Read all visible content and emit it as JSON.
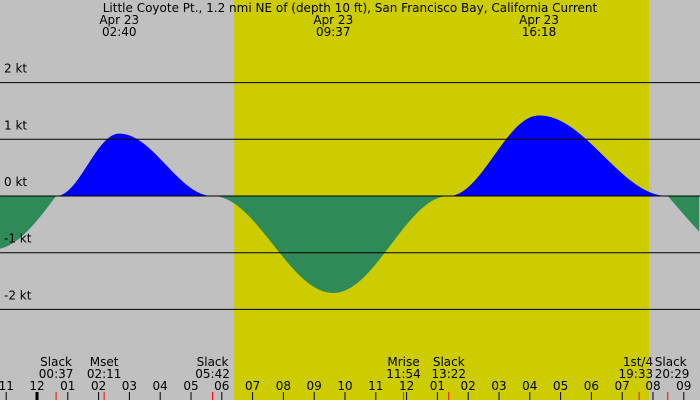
{
  "chart_data": {
    "type": "area",
    "title": "Little Coyote Pt., 1.2 nmi NE of (depth 10 ft), San Francisco Bay, California Current",
    "unit": "kt",
    "y_ticks": [
      2,
      1,
      0,
      -1,
      -2
    ],
    "y_tick_labels": [
      "2 kt",
      "1 kt",
      "0 kt",
      "-1 kt",
      "-2 kt"
    ],
    "ylim": [
      -3.4,
      3.4
    ],
    "xlim_hours": [
      -1.2,
      21.5
    ],
    "x_tick_labels": [
      "11",
      "12",
      "01",
      "02",
      "03",
      "04",
      "05",
      "06",
      "07",
      "08",
      "09",
      "10",
      "11",
      "12",
      "01",
      "02",
      "03",
      "04",
      "05",
      "06",
      "07",
      "08",
      "09"
    ],
    "x_tick_hours": [
      -1,
      0,
      1,
      2,
      3,
      4,
      5,
      6,
      7,
      8,
      9,
      10,
      11,
      12,
      13,
      14,
      15,
      16,
      17,
      18,
      19,
      20,
      21
    ],
    "daylight_hours": [
      6.4,
      19.87
    ],
    "colors": {
      "night": "#c0c0c0",
      "day": "#cccc00",
      "flood": "#0000ff",
      "ebb": "#2e8b57",
      "event_tick": "#ff0000"
    },
    "current_points": [
      {
        "hour": -1.2,
        "kt": -0.93
      },
      {
        "hour": 0.62,
        "kt": 0
      },
      {
        "hour": 2.67,
        "kt": 1.1
      },
      {
        "hour": 5.7,
        "kt": 0
      },
      {
        "hour": 9.62,
        "kt": -1.71
      },
      {
        "hour": 13.37,
        "kt": 0
      },
      {
        "hour": 16.3,
        "kt": 1.42
      },
      {
        "hour": 20.48,
        "kt": 0
      },
      {
        "hour": 21.5,
        "kt": -0.63
      }
    ],
    "extreme_labels": [
      {
        "date": "Apr 23",
        "time": "02:40",
        "hour": 2.67
      },
      {
        "date": "Apr 23",
        "time": "09:37",
        "hour": 9.62
      },
      {
        "date": "Apr 23",
        "time": "16:18",
        "hour": 16.3
      }
    ],
    "events": [
      {
        "name": "Slack",
        "time": "00:37",
        "hour": 0.62
      },
      {
        "name": "Mset",
        "time": "02:11",
        "hour": 2.18
      },
      {
        "name": "Slack",
        "time": "05:42",
        "hour": 5.7
      },
      {
        "name": "Mrise",
        "time": "11:54",
        "hour": 11.9
      },
      {
        "name": "Slack",
        "time": "13:22",
        "hour": 13.37
      },
      {
        "name": "1st/4",
        "time": "19:33",
        "hour": 19.55
      },
      {
        "name": "Slack",
        "time": "20:29",
        "hour": 20.48
      }
    ]
  }
}
